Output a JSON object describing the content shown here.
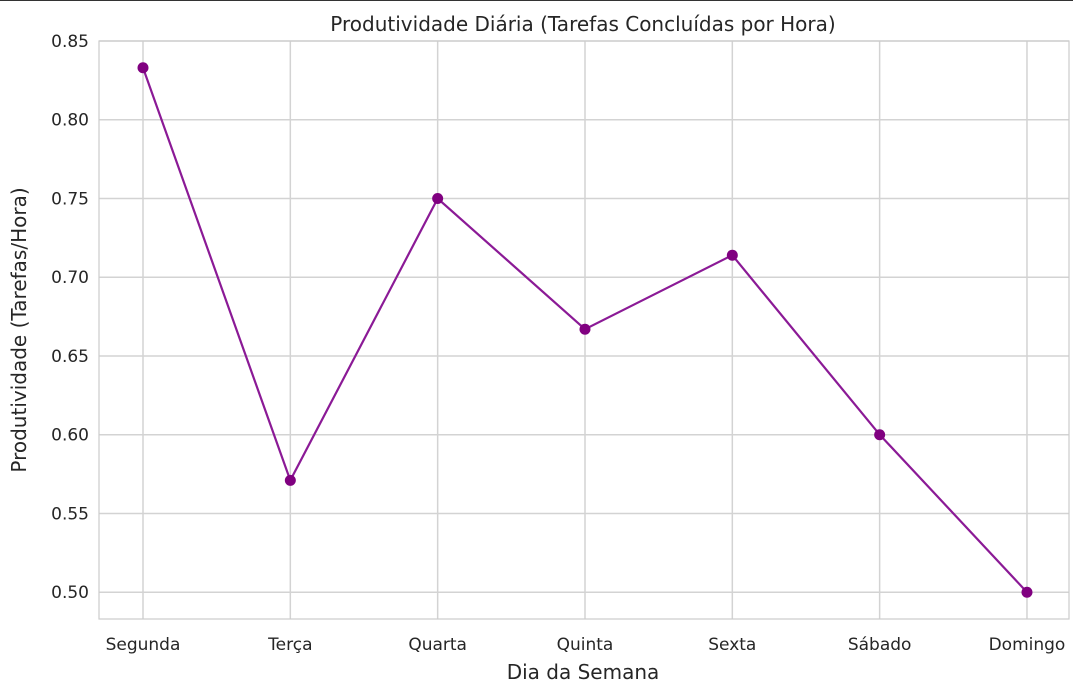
{
  "chart_data": {
    "type": "line",
    "title": "Produtividade Diária (Tarefas Concluídas por Hora)",
    "xlabel": "Dia da Semana",
    "ylabel": "Produtividade (Tarefas/Hora)",
    "categories": [
      "Segunda",
      "Terça",
      "Quarta",
      "Quinta",
      "Sexta",
      "Sábado",
      "Domingo"
    ],
    "series": [
      {
        "values": [
          0.833,
          0.571,
          0.75,
          0.667,
          0.714,
          0.6,
          0.5
        ]
      }
    ],
    "ylim": [
      0.483,
      0.85
    ],
    "yticks": [
      0.5,
      0.55,
      0.6,
      0.65,
      0.7,
      0.75,
      0.8,
      0.85
    ],
    "grid": true,
    "colors": {
      "line": "#8b1a96",
      "marker": "#800080",
      "grid": "#d3d3d3",
      "frame": "#cccccc"
    }
  }
}
